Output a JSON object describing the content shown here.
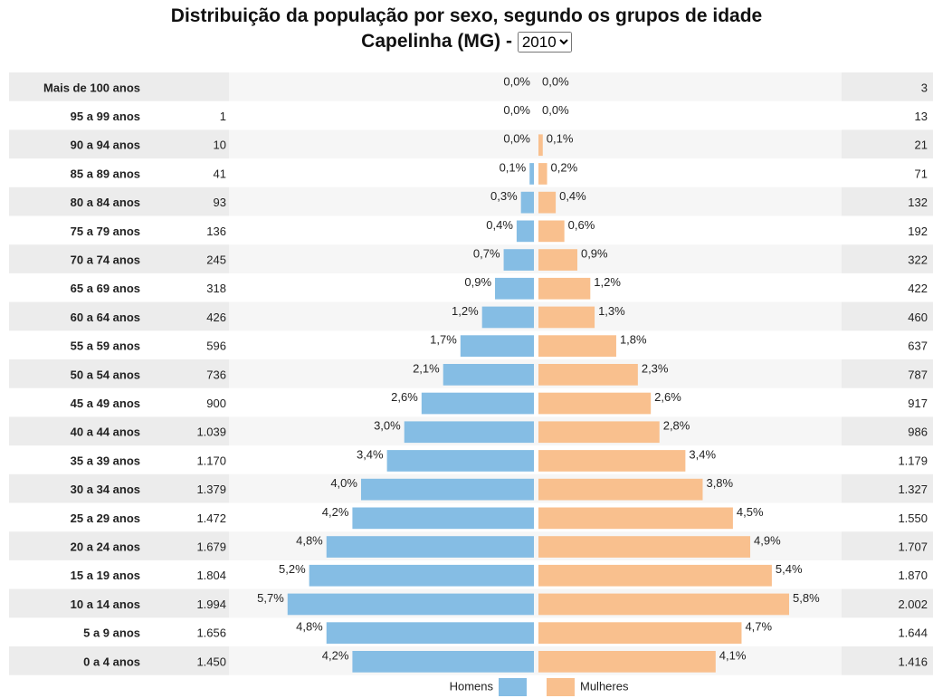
{
  "chart_data": {
    "type": "pyramid",
    "title": "Distribuição da população por sexo, segundo os grupos de idade",
    "subtitle": "Capelinha (MG) -",
    "year_options": [
      "2010"
    ],
    "categories": [
      "Mais de 100 anos",
      "95 a 99 anos",
      "90 a 94 anos",
      "85 a 89 anos",
      "80 a 84 anos",
      "75 a 79 anos",
      "70 a 74 anos",
      "65 a 69 anos",
      "60 a 64 anos",
      "55 a 59 anos",
      "50 a 54 anos",
      "45 a 49 anos",
      "40 a 44 anos",
      "35 a 39 anos",
      "30 a 34 anos",
      "25 a 29 anos",
      "20 a 24 anos",
      "15 a 19 anos",
      "10 a 14 anos",
      "5 a 9 anos",
      "0 a 4 anos"
    ],
    "series": [
      {
        "name": "Homens",
        "color": "#85bde4",
        "values": [
          0.0,
          0.0,
          0.0,
          0.1,
          0.3,
          0.4,
          0.7,
          0.9,
          1.2,
          1.7,
          2.1,
          2.6,
          3.0,
          3.4,
          4.0,
          4.2,
          4.8,
          5.2,
          5.7,
          4.8,
          4.2
        ],
        "value_labels": [
          "0,0%",
          "0,0%",
          "0,0%",
          "0,1%",
          "0,3%",
          "0,4%",
          "0,7%",
          "0,9%",
          "1,2%",
          "1,7%",
          "2,1%",
          "2,6%",
          "3,0%",
          "3,4%",
          "4,0%",
          "4,2%",
          "4,8%",
          "5,2%",
          "5,7%",
          "4,8%",
          "4,2%"
        ],
        "counts": [
          null,
          1,
          10,
          41,
          93,
          136,
          245,
          318,
          426,
          596,
          736,
          900,
          1039,
          1170,
          1379,
          1472,
          1679,
          1804,
          1994,
          1656,
          1450
        ],
        "count_labels": [
          null,
          "1",
          "10",
          "41",
          "93",
          "136",
          "245",
          "318",
          "426",
          "596",
          "736",
          "900",
          "1.039",
          "1.170",
          "1.379",
          "1.472",
          "1.679",
          "1.804",
          "1.994",
          "1.656",
          "1.450"
        ]
      },
      {
        "name": "Mulheres",
        "color": "#f9c08e",
        "values": [
          0.0,
          0.0,
          0.1,
          0.2,
          0.4,
          0.6,
          0.9,
          1.2,
          1.3,
          1.8,
          2.3,
          2.6,
          2.8,
          3.4,
          3.8,
          4.5,
          4.9,
          5.4,
          5.8,
          4.7,
          4.1
        ],
        "value_labels": [
          "0,0%",
          "0,0%",
          "0,1%",
          "0,2%",
          "0,4%",
          "0,6%",
          "0,9%",
          "1,2%",
          "1,3%",
          "1,8%",
          "2,3%",
          "2,6%",
          "2,8%",
          "3,4%",
          "3,8%",
          "4,5%",
          "4,9%",
          "5,4%",
          "5,8%",
          "4,7%",
          "4,1%"
        ],
        "counts": [
          3,
          13,
          21,
          71,
          132,
          192,
          322,
          422,
          460,
          637,
          787,
          917,
          986,
          1179,
          1327,
          1550,
          1707,
          1870,
          2002,
          1644,
          1416
        ],
        "count_labels": [
          "3",
          "13",
          "21",
          "71",
          "132",
          "192",
          "322",
          "422",
          "460",
          "637",
          "787",
          "917",
          "986",
          "1.179",
          "1.327",
          "1.550",
          "1.707",
          "1.870",
          "2.002",
          "1.644",
          "1.416"
        ]
      }
    ]
  }
}
